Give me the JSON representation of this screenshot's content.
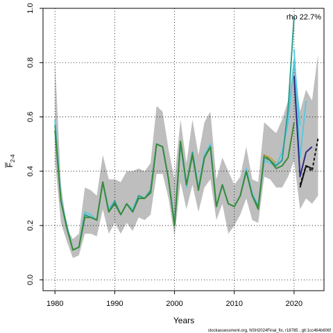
{
  "chart_data": {
    "type": "line",
    "xlabel": "Years",
    "ylabel": "F",
    "ylabel_sub": "2-4",
    "xlim": [
      1978,
      2025
    ],
    "ylim": [
      -0.04,
      1.0
    ],
    "grid": true,
    "x_ticks": [
      1980,
      1990,
      2000,
      2010,
      2020
    ],
    "y_ticks": [
      0.0,
      0.2,
      0.4,
      0.6,
      0.8,
      1.0
    ],
    "x_tick_labels": [
      "1980",
      "1990",
      "2000",
      "2010",
      "2020"
    ],
    "y_tick_labels": [
      "0.0",
      "0.2",
      "0.4",
      "0.6",
      "0.8",
      "1.0"
    ],
    "annotation": "rho 22.7%",
    "footer": "stockassessment.org, NSH2024Final_fix, r18785 , git:1cc464b606f",
    "band": {
      "color": "#bebebe",
      "x": [
        1980,
        1981,
        1982,
        1983,
        1984,
        1985,
        1986,
        1987,
        1988,
        1989,
        1990,
        1991,
        1992,
        1993,
        1994,
        1995,
        1996,
        1997,
        1998,
        1999,
        2000,
        2001,
        2002,
        2003,
        2004,
        2005,
        2006,
        2007,
        2008,
        2009,
        2010,
        2011,
        2012,
        2013,
        2014,
        2015,
        2016,
        2017,
        2018,
        2019,
        2020,
        2021,
        2022,
        2023,
        2024
      ],
      "lower": [
        0.44,
        0.21,
        0.14,
        0.08,
        0.09,
        0.17,
        0.17,
        0.16,
        0.26,
        0.17,
        0.21,
        0.17,
        0.21,
        0.18,
        0.23,
        0.22,
        0.24,
        0.39,
        0.39,
        0.3,
        0.16,
        0.36,
        0.26,
        0.35,
        0.25,
        0.34,
        0.37,
        0.22,
        0.28,
        0.17,
        0.2,
        0.24,
        0.3,
        0.22,
        0.21,
        0.38,
        0.37,
        0.34,
        0.34,
        0.38,
        0.44,
        0.26,
        0.3,
        0.28,
        0.31
      ],
      "upper": [
        0.81,
        0.35,
        0.19,
        0.15,
        0.17,
        0.34,
        0.33,
        0.31,
        0.46,
        0.37,
        0.37,
        0.36,
        0.4,
        0.4,
        0.41,
        0.4,
        0.43,
        0.64,
        0.62,
        0.48,
        0.37,
        0.59,
        0.43,
        0.59,
        0.46,
        0.58,
        0.62,
        0.37,
        0.45,
        0.4,
        0.35,
        0.38,
        0.49,
        0.37,
        0.36,
        0.58,
        0.56,
        0.54,
        0.59,
        0.66,
        0.8,
        0.62,
        0.7,
        0.66,
        0.83
      ]
    },
    "series": [
      {
        "color": "#5bc8e0",
        "x": [
          1980,
          1981,
          1982,
          1983,
          1984,
          1985,
          1986,
          1987,
          1988,
          1989,
          1990,
          1991,
          1992,
          1993,
          1994,
          1995,
          1996,
          1997,
          1998,
          1999,
          2000,
          2001,
          2002,
          2003,
          2004,
          2005,
          2006,
          2007,
          2008,
          2009,
          2010,
          2011,
          2012,
          2013,
          2014,
          2015,
          2016,
          2017,
          2018,
          2019,
          2020,
          2021
        ],
        "y": [
          0.59,
          0.3,
          0.2,
          0.11,
          0.12,
          0.25,
          0.24,
          0.22,
          0.36,
          0.26,
          0.29,
          0.24,
          0.28,
          0.26,
          0.31,
          0.3,
          0.33,
          0.5,
          0.49,
          0.37,
          0.21,
          0.5,
          0.34,
          0.47,
          0.34,
          0.46,
          0.5,
          0.27,
          0.35,
          0.28,
          0.27,
          0.31,
          0.41,
          0.32,
          0.27,
          0.44,
          0.43,
          0.42,
          0.47,
          0.58,
          0.81,
          0.57
        ]
      },
      {
        "color": "#5bc8e0",
        "x": [
          2020,
          2021,
          2022
        ],
        "y": [
          0.85,
          0.45,
          0.66
        ]
      },
      {
        "color": "#2a2a82",
        "x": [
          2020,
          2021,
          2022,
          2023
        ],
        "y": [
          0.75,
          0.38,
          0.47,
          0.49
        ]
      },
      {
        "color": "#2e9f8e",
        "x": [
          1980,
          1981,
          1982,
          1983,
          1984,
          1985,
          1986,
          1987,
          1988,
          1989,
          1990,
          1991,
          1992,
          1993,
          1994,
          1995,
          1996,
          1997,
          1998,
          1999,
          2000,
          2001,
          2002,
          2003,
          2004,
          2005,
          2006,
          2007,
          2008,
          2009,
          2010,
          2011,
          2012,
          2013,
          2014,
          2015,
          2016,
          2017,
          2018,
          2019,
          2020
        ],
        "y": [
          0.57,
          0.29,
          0.19,
          0.11,
          0.12,
          0.24,
          0.23,
          0.22,
          0.36,
          0.25,
          0.29,
          0.24,
          0.28,
          0.25,
          0.31,
          0.3,
          0.33,
          0.5,
          0.49,
          0.37,
          0.2,
          0.51,
          0.35,
          0.47,
          0.33,
          0.45,
          0.49,
          0.27,
          0.35,
          0.28,
          0.27,
          0.31,
          0.4,
          0.31,
          0.27,
          0.45,
          0.44,
          0.42,
          0.44,
          0.63,
          0.97
        ]
      },
      {
        "color": "#3a8a3a",
        "x": [
          1980,
          1981,
          1982,
          1983,
          1984,
          1985,
          1986,
          1987,
          1988,
          1989,
          1990,
          1991,
          1992,
          1993,
          1994,
          1995,
          1996,
          1997,
          1998,
          1999,
          2000,
          2001,
          2002,
          2003,
          2004,
          2005,
          2006,
          2007,
          2008,
          2009,
          2010,
          2011,
          2012,
          2013,
          2014,
          2015,
          2016,
          2017,
          2018,
          2019,
          2020
        ],
        "y": [
          0.55,
          0.29,
          0.19,
          0.11,
          0.12,
          0.23,
          0.23,
          0.22,
          0.36,
          0.25,
          0.28,
          0.24,
          0.28,
          0.25,
          0.3,
          0.3,
          0.32,
          0.5,
          0.49,
          0.37,
          0.2,
          0.51,
          0.35,
          0.46,
          0.33,
          0.45,
          0.49,
          0.27,
          0.35,
          0.28,
          0.27,
          0.31,
          0.4,
          0.31,
          0.26,
          0.46,
          0.44,
          0.41,
          0.42,
          0.45,
          0.58
        ]
      },
      {
        "color": "#c8a040",
        "x": [
          2015,
          2016,
          2017
        ],
        "y": [
          0.46,
          0.45,
          0.43
        ]
      },
      {
        "color": "#111111",
        "dashed": true,
        "x": [
          2021,
          2022,
          2023,
          2024
        ],
        "y": [
          0.35,
          0.42,
          0.4,
          0.52
        ]
      },
      {
        "color": "#111111",
        "x": [
          2021,
          2022,
          2023
        ],
        "y": [
          0.34,
          0.42,
          0.41
        ]
      }
    ]
  }
}
